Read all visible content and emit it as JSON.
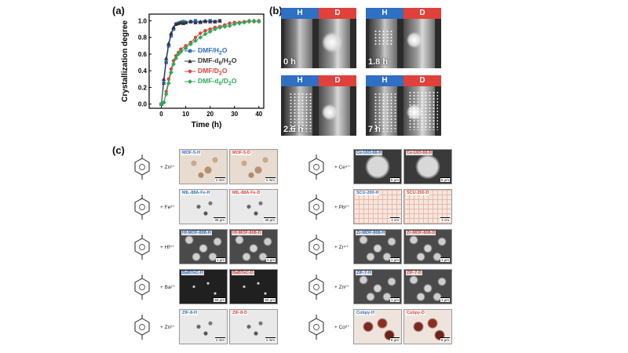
{
  "panels": {
    "a": "(a)",
    "b": "(b)",
    "c": "(c)"
  },
  "chart_data": {
    "type": "line",
    "xlabel": "Time (h)",
    "ylabel": "Crystallization degree",
    "xlim": [
      -5,
      42
    ],
    "ylim": [
      -0.05,
      1.08
    ],
    "xticks": [
      "0",
      "10",
      "20",
      "30",
      "40"
    ],
    "yticks": [
      "0.0",
      "0.2",
      "0.4",
      "0.6",
      "0.8",
      "1.0"
    ],
    "legend_position": "right",
    "series": [
      {
        "name": "DMF/H2O",
        "name_html": "DMF/H<sub>2</sub>O",
        "color": "#2f6fc4",
        "marker": "square",
        "x": [
          0,
          1,
          2,
          3,
          4,
          5,
          6,
          7,
          8,
          9,
          10,
          12,
          14,
          16,
          18,
          20,
          22,
          24
        ],
        "y": [
          0,
          0.25,
          0.5,
          0.7,
          0.82,
          0.9,
          0.96,
          0.97,
          0.98,
          0.99,
          0.98,
          0.99,
          1.0,
          0.98,
          0.99,
          1.0,
          0.99,
          1.0
        ]
      },
      {
        "name": "DMF-d6/H2O",
        "name_html": "DMF-d<sub>6</sub>/H<sub>2</sub>O",
        "color": "#333333",
        "marker": "triangle",
        "x": [
          0,
          1,
          2,
          3,
          4,
          5,
          6,
          7,
          8,
          9,
          10,
          12,
          14,
          16,
          18,
          20,
          22,
          24
        ],
        "y": [
          0,
          0.3,
          0.55,
          0.73,
          0.85,
          0.92,
          0.96,
          0.97,
          0.98,
          0.97,
          0.98,
          0.99,
          0.98,
          0.99,
          1.0,
          0.99,
          0.99,
          1.0
        ]
      },
      {
        "name": "DMF/D2O",
        "name_html": "DMF/D<sub>2</sub>O",
        "color": "#e0413b",
        "marker": "circle",
        "x": [
          0,
          1,
          2,
          3,
          4,
          5,
          6,
          7,
          8,
          10,
          12,
          14,
          16,
          18,
          20,
          22,
          24,
          26,
          28,
          30,
          32,
          34,
          36,
          38,
          40
        ],
        "y": [
          0,
          0.02,
          0.15,
          0.3,
          0.42,
          0.52,
          0.58,
          0.62,
          0.66,
          0.7,
          0.74,
          0.8,
          0.85,
          0.88,
          0.9,
          0.92,
          0.93,
          0.95,
          0.97,
          0.98,
          0.98,
          0.99,
          1.0,
          0.99,
          1.0
        ]
      },
      {
        "name": "DMF-d6/D2O",
        "name_html": "DMF-d<sub>6</sub>/D<sub>2</sub>O",
        "color": "#2eaa57",
        "marker": "diamond",
        "x": [
          0,
          1,
          2,
          3,
          4,
          5,
          6,
          7,
          8,
          10,
          12,
          14,
          16,
          18,
          20,
          22,
          24,
          26,
          28,
          30,
          32,
          34,
          36,
          38,
          40
        ],
        "y": [
          0,
          0.02,
          0.12,
          0.25,
          0.38,
          0.48,
          0.55,
          0.6,
          0.63,
          0.67,
          0.72,
          0.76,
          0.8,
          0.84,
          0.87,
          0.9,
          0.92,
          0.93,
          0.94,
          0.96,
          0.97,
          0.98,
          0.99,
          1.0,
          0.99
        ]
      }
    ]
  },
  "panel_b": {
    "tube_labels": {
      "h": "H",
      "d": "D"
    },
    "times": [
      "0 h",
      "1.8 h",
      "2.6 h",
      "7 h"
    ]
  },
  "panel_c": {
    "left_rows": [
      {
        "metal": "Zn²⁺",
        "h_label": "MOF-5-H",
        "d_label": "MOF-5-D",
        "scale": "1 mm",
        "style": "optical"
      },
      {
        "metal": "Fe³⁺",
        "h_label": "MIL-88A-Fe-H",
        "d_label": "MIL-88A-Fe-D",
        "scale": "30 μm",
        "style": "light"
      },
      {
        "metal": "Hf⁴⁺",
        "h_label": "Hf-MOF-808-H",
        "d_label": "Hf-MOF-808-D",
        "scale": "1 μm",
        "style": "sem"
      },
      {
        "metal": "Ba²⁺",
        "h_label": "BaBTeC-H",
        "d_label": "BaBTeC-D",
        "scale": "50 μm",
        "style": "semdark"
      },
      {
        "metal": "Zn²⁺",
        "h_label": "ZIF-8-H",
        "d_label": "ZIF-8-D",
        "scale": "1 mm",
        "style": "light"
      }
    ],
    "right_rows": [
      {
        "metal": "Ce⁴⁺",
        "h_label": "Ce-UiO-66-H",
        "d_label": "Ce-UiO-66-D",
        "scale": "5 μm",
        "style": "oct"
      },
      {
        "metal": "Pb²⁺",
        "h_label": "SCU-200-H",
        "d_label": "SCU-200-D",
        "scale": "1 cm",
        "style": "grid"
      },
      {
        "metal": "Zr⁴⁺",
        "h_label": "Zr-MOF-808-H",
        "d_label": "Zr-MOF-808-D",
        "scale": "1 μm",
        "style": "sem"
      },
      {
        "metal": "Zn²⁺",
        "h_label": "ZIF-7-H",
        "d_label": "ZIF-7-D",
        "scale": "1 μm",
        "style": "sem"
      },
      {
        "metal": "Co²⁺",
        "h_label": "Cobpy-H",
        "d_label": "Cobpy-D",
        "scale": "5 μm",
        "style": "star"
      }
    ],
    "plus": "+"
  }
}
